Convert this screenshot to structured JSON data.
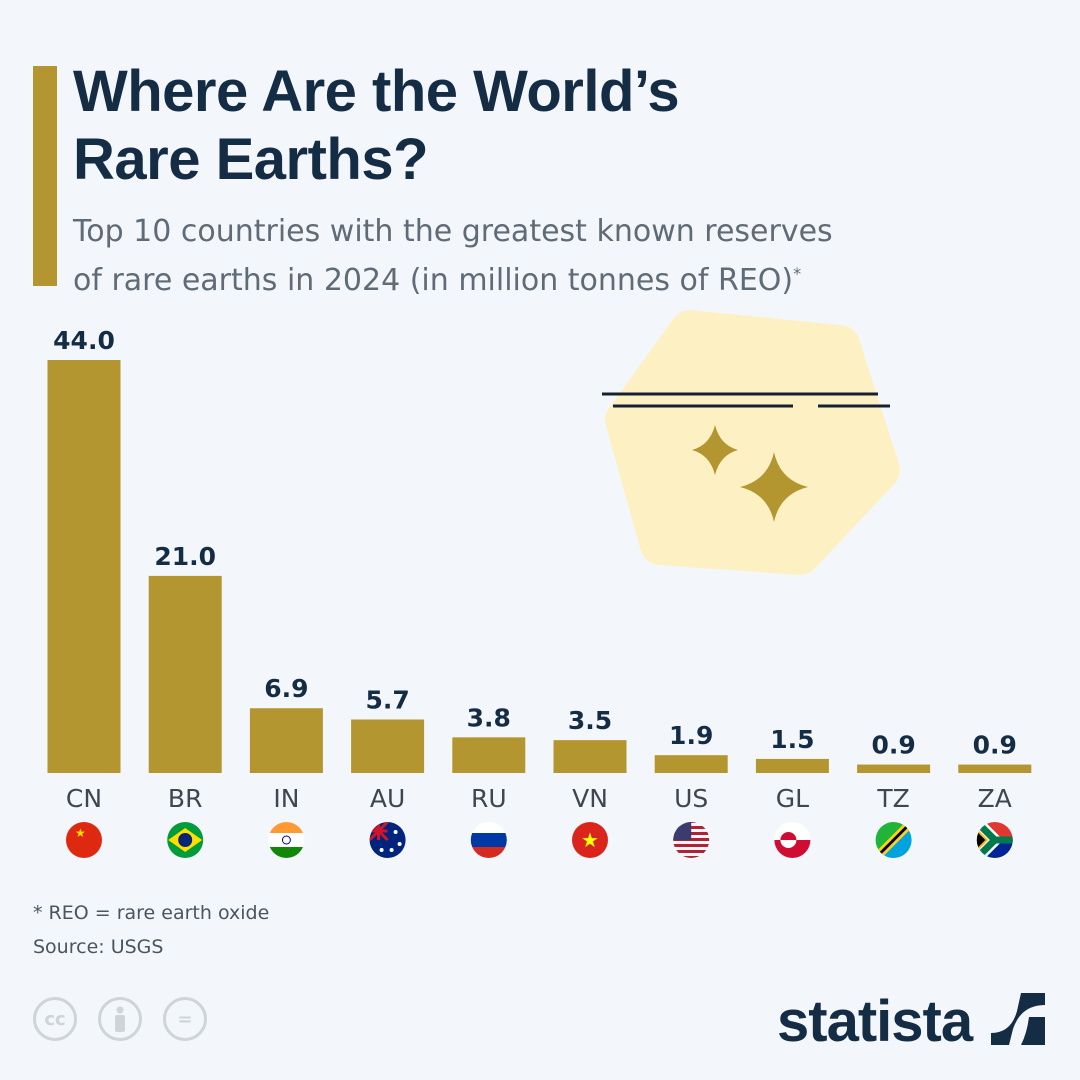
{
  "header": {
    "title_line1": "Where Are the World’s",
    "title_line2": "Rare Earths?",
    "subtitle_line1": "Top 10 countries with the greatest known reserves",
    "subtitle_line2": "of rare earths in 2024 (in million tonnes of REO)",
    "subtitle_marker": "*"
  },
  "chart_data": {
    "type": "bar",
    "categories": [
      "CN",
      "BR",
      "IN",
      "AU",
      "RU",
      "VN",
      "US",
      "GL",
      "TZ",
      "ZA"
    ],
    "values": [
      44.0,
      21.0,
      6.9,
      5.7,
      3.8,
      3.5,
      1.9,
      1.5,
      0.9,
      0.9
    ],
    "value_labels": [
      "44.0",
      "21.0",
      "6.9",
      "5.7",
      "3.8",
      "3.5",
      "1.9",
      "1.5",
      "0.9",
      "0.9"
    ],
    "ylim": [
      0,
      44
    ],
    "grid": false,
    "bar_color": "#b3962f",
    "flags": [
      "china-flag",
      "brazil-flag",
      "india-flag",
      "australia-flag",
      "russia-flag",
      "vietnam-flag",
      "usa-flag",
      "greenland-flag",
      "tanzania-flag",
      "south-africa-flag"
    ]
  },
  "footer": {
    "note": "* REO = rare earth oxide",
    "source": "Source: USGS",
    "license_icons": [
      "cc-icon",
      "attribution-icon",
      "no-derivatives-icon"
    ],
    "cc_text": "cc",
    "nd_text": "=",
    "brand": "statista"
  },
  "colors": {
    "accent": "#b3962f",
    "title": "#152c45",
    "background": "#f3f7fb",
    "illustration_blob": "#fdf1c4"
  }
}
